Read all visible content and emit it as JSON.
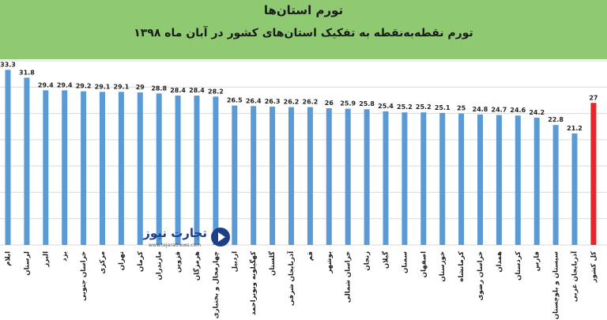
{
  "chart_data": {
    "type": "bar",
    "title": "تورم استان‌ها",
    "subtitle": "تورم نقطه‌به‌نقطه به تفکیک استان‌های کشور در آبان ماه ۱۳۹۸",
    "categories": [
      "ایلام",
      "لرستان",
      "البرز",
      "یزد",
      "خراسان جنوبی",
      "مرکزی",
      "تهران",
      "کرمان",
      "مازندران",
      "قزوین",
      "هرمزگان",
      "چهارمحال و بختیاری",
      "اردبیل",
      "کهگیلویه وبویراحمد",
      "گلستان",
      "آذربایجان شرقی",
      "قم",
      "بوشهر",
      "خراسان شمالی",
      "زنجان",
      "گیلان",
      "سمنان",
      "اصفهان",
      "خوزستان",
      "کرمانشاه",
      "خراسان رضوی",
      "همدان",
      "کردستان",
      "فارس",
      "سیستان و بلوچستان",
      "آذربایجان غربی",
      "کل کشور"
    ],
    "values": [
      33.3,
      31.8,
      29.4,
      29.4,
      29.2,
      29.1,
      29.1,
      29,
      28.8,
      28.4,
      28.4,
      28.2,
      26.5,
      26.4,
      26.3,
      26.2,
      26.2,
      26,
      25.9,
      25.8,
      25.4,
      25.2,
      25.2,
      25.1,
      25,
      24.8,
      24.7,
      24.6,
      24.2,
      22.8,
      21.2,
      27
    ],
    "value_labels": [
      "33.3",
      "31.8",
      "29.4",
      "29.4",
      "29.2",
      "29.1",
      "29.1",
      "29",
      "28.8",
      "28.4",
      "28.4",
      "28.2",
      "26.5",
      "26.4",
      "26.3",
      "26.2",
      "26.2",
      "26",
      "25.9",
      "25.8",
      "25.4",
      "25.2",
      "25.2",
      "25.1",
      "25",
      "24.8",
      "24.7",
      "24.6",
      "24.2",
      "22.8",
      "21.2",
      "27"
    ],
    "highlight_index": 31,
    "ylim": [
      0,
      35
    ],
    "grid": true,
    "colors": {
      "bar": "#5b9bd5",
      "highlight": "#e8262a",
      "grid": "#d9d9d9",
      "header": "#8fca72"
    }
  },
  "watermark": {
    "brand": "تجارت نیوز",
    "url": "www.tejaratnews.com",
    "icon": "play-circle-icon"
  }
}
